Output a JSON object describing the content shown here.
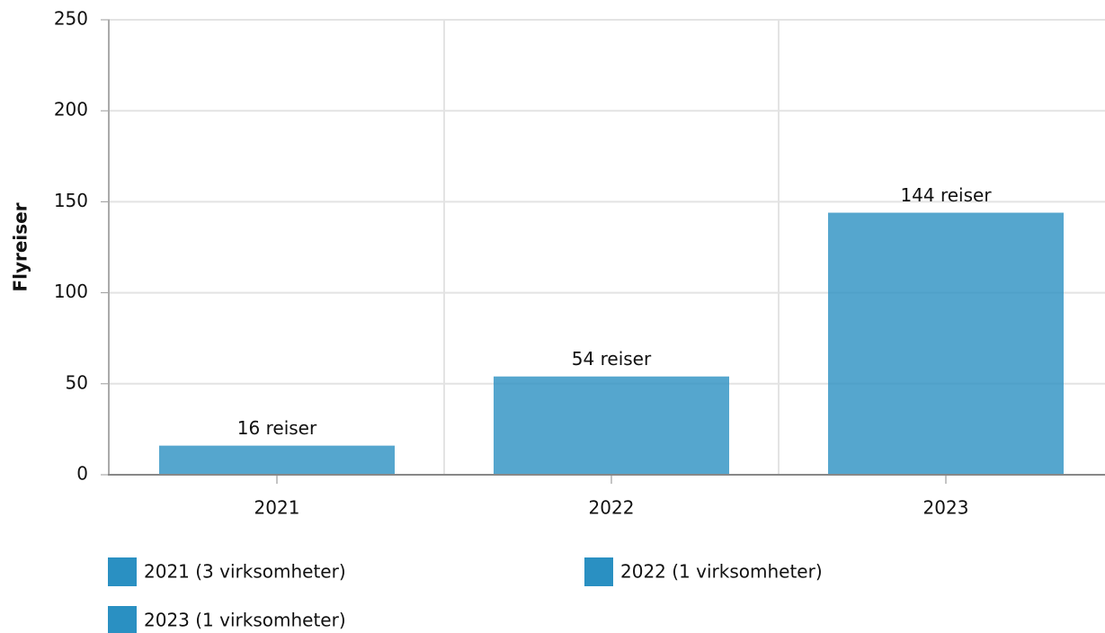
{
  "chart_data": {
    "type": "bar",
    "y_label": "Flyreiser",
    "categories": [
      "2021",
      "2022",
      "2023"
    ],
    "values": [
      16,
      54,
      144
    ],
    "value_labels": [
      "16 reiser",
      "54 reiser",
      "144 reiser"
    ],
    "color": "#2a90c2",
    "legend": [
      "2021 (3 virksomheter)",
      "2022 (1 virksomheter)",
      "2023 (1 virksomheter)"
    ],
    "ylim": [
      0,
      250
    ],
    "yticks": [
      0,
      50,
      100,
      150,
      200,
      250
    ],
    "grid": true
  }
}
